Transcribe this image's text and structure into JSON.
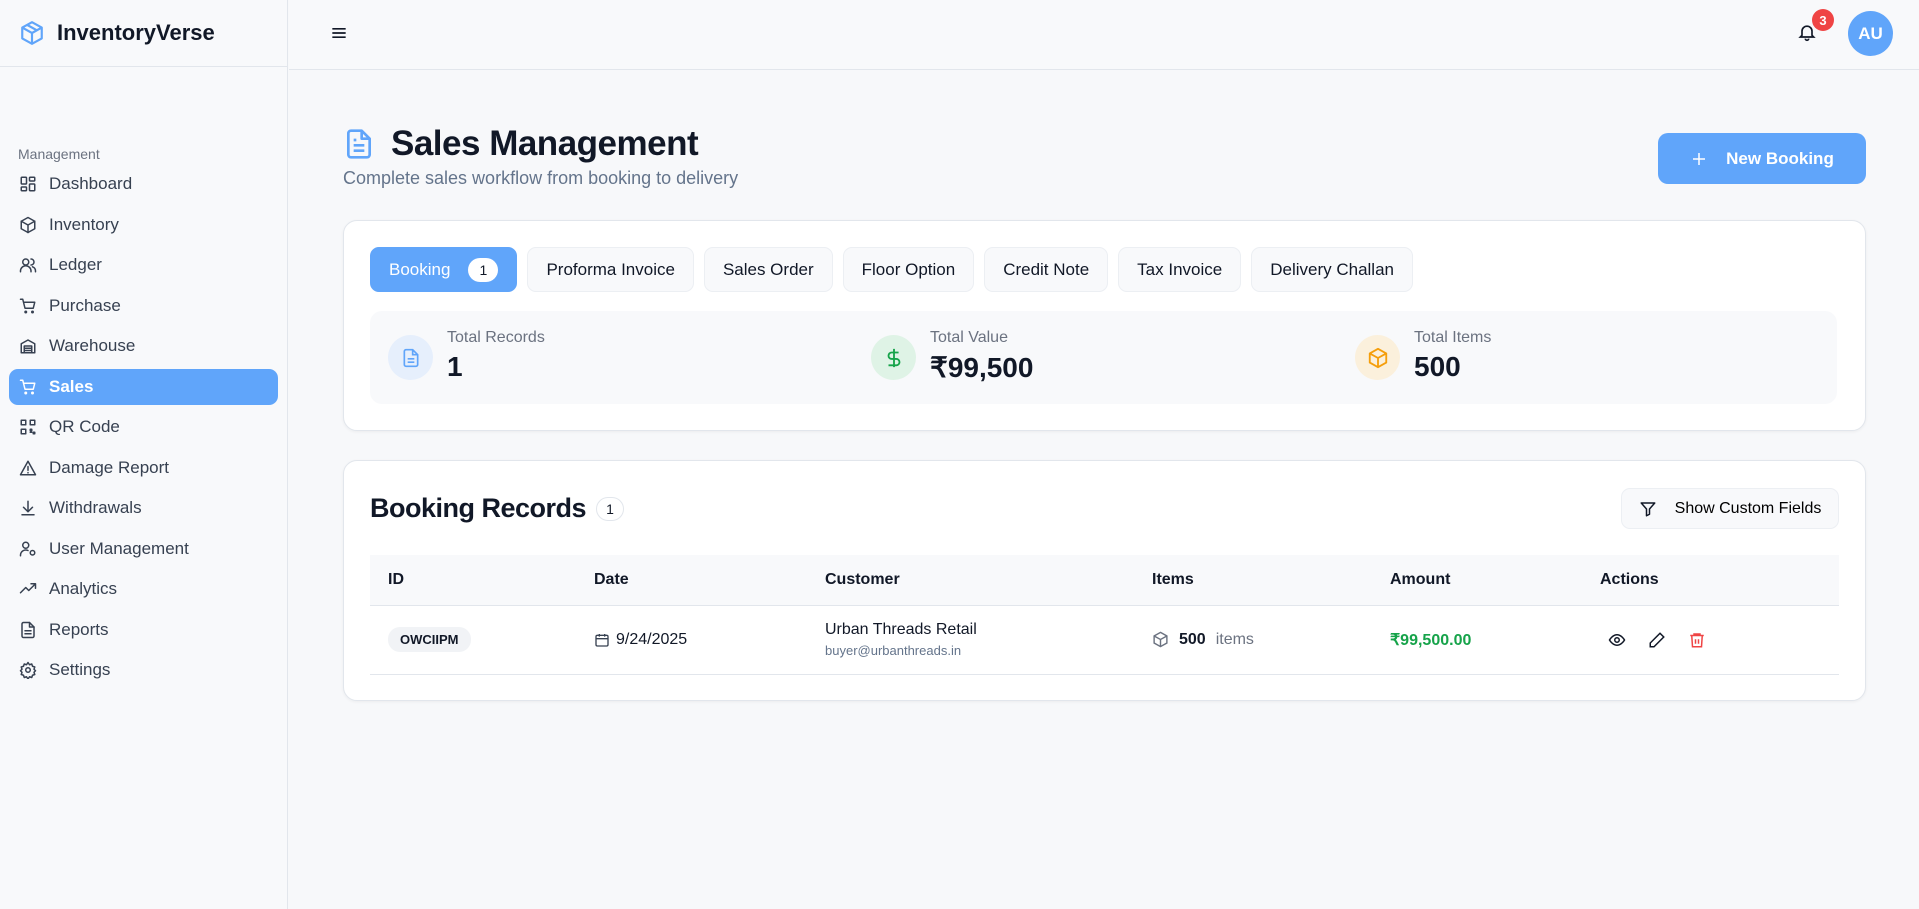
{
  "app": {
    "name": "InventoryVerse"
  },
  "sidebar": {
    "section": "Management",
    "items": [
      {
        "label": "Dashboard",
        "icon": "dashboard-icon"
      },
      {
        "label": "Inventory",
        "icon": "box-icon"
      },
      {
        "label": "Ledger",
        "icon": "users-icon"
      },
      {
        "label": "Purchase",
        "icon": "cart-icon"
      },
      {
        "label": "Warehouse",
        "icon": "warehouse-icon"
      },
      {
        "label": "Sales",
        "icon": "cart-icon",
        "active": true
      },
      {
        "label": "QR Code",
        "icon": "qr-icon"
      },
      {
        "label": "Damage Report",
        "icon": "warning-icon"
      },
      {
        "label": "Withdrawals",
        "icon": "download-icon"
      },
      {
        "label": "User Management",
        "icon": "user-cog-icon"
      },
      {
        "label": "Analytics",
        "icon": "trending-icon"
      },
      {
        "label": "Reports",
        "icon": "file-icon"
      },
      {
        "label": "Settings",
        "icon": "gear-icon"
      }
    ]
  },
  "header": {
    "notifications": "3",
    "avatar": "AU"
  },
  "page": {
    "title": "Sales Management",
    "subtitle": "Complete sales workflow from booking to delivery",
    "new_button": "New Booking"
  },
  "tabs": [
    {
      "label": "Booking",
      "count": "1",
      "active": true
    },
    {
      "label": "Proforma Invoice"
    },
    {
      "label": "Sales Order"
    },
    {
      "label": "Floor Option"
    },
    {
      "label": "Credit Note"
    },
    {
      "label": "Tax Invoice"
    },
    {
      "label": "Delivery Challan"
    }
  ],
  "stats": [
    {
      "label": "Total Records",
      "value": "1"
    },
    {
      "label": "Total Value",
      "value": "₹99,500"
    },
    {
      "label": "Total Items",
      "value": "500"
    }
  ],
  "records": {
    "title": "Booking Records",
    "count": "1",
    "custom_fields": "Show Custom Fields",
    "columns": [
      "ID",
      "Date",
      "Customer",
      "Items",
      "Amount",
      "Actions"
    ],
    "rows": [
      {
        "id": "OWCIIPM",
        "date": "9/24/2025",
        "customer": "Urban Threads Retail",
        "email": "buyer@urbanthreads.in",
        "items": "500",
        "items_unit": "items",
        "amount": "₹99,500.00"
      }
    ]
  },
  "colors": {
    "accent": "#60a5fa",
    "success": "#16a34a",
    "danger": "#ef4444",
    "warning": "#f59e0b"
  }
}
